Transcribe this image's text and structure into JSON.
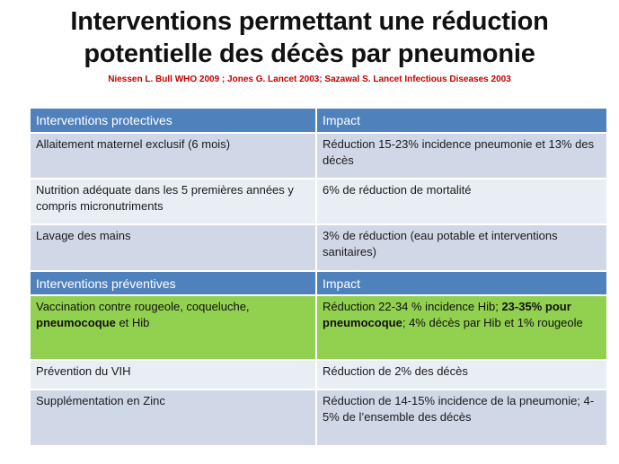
{
  "slide": {
    "title_line1": "Interventions permettant une réduction",
    "title_line2": "potentielle des décès par pneumonie",
    "subtitle": "Niessen L. Bull WHO 2009 ; Jones G. Lancet 2003; Sazawal S. Lancet Infectious  Diseases 2003"
  },
  "table": {
    "section1": {
      "header_col1": "Interventions protectives",
      "header_col2": "Impact",
      "rows": [
        {
          "intervention": "Allaitement maternel exclusif (6 mois)",
          "impact": "Réduction 15-23% incidence pneumonie  et 13% des décès"
        },
        {
          "intervention": "Nutrition adéquate  dans les 5 premières années y compris micronutriments",
          "impact": "6% de réduction de mortalité"
        },
        {
          "intervention": "Lavage des mains",
          "impact": "3% de réduction (eau potable et interventions sanitaires)"
        }
      ]
    },
    "section2": {
      "header_col1": "Interventions préventives",
      "header_col2": "Impact",
      "vaccination": {
        "intervention_part1": "Vaccination contre rougeole, coqueluche, ",
        "intervention_bold": "pneumocoque",
        "intervention_part2": " et Hib",
        "impact_part1": "Réduction 22-34 % incidence Hib; ",
        "impact_bold": "23-35% pour pneumocoque",
        "impact_part2": "; 4% décès par Hib et 1% rougeole",
        "highlight_color": "#92d050"
      },
      "rows": [
        {
          "intervention": "Prévention du VIH",
          "impact": "Réduction de 2% des décès"
        },
        {
          "intervention": "Supplémentation en Zinc",
          "impact": "Réduction de 14-15% incidence de la pneumonie; 4-5%  de l’ensemble des décès"
        }
      ]
    }
  },
  "colors": {
    "header": "#4f81bd",
    "row_dark": "#d0d8e8",
    "row_light": "#e9edf4",
    "subtitle": "#c00000"
  }
}
